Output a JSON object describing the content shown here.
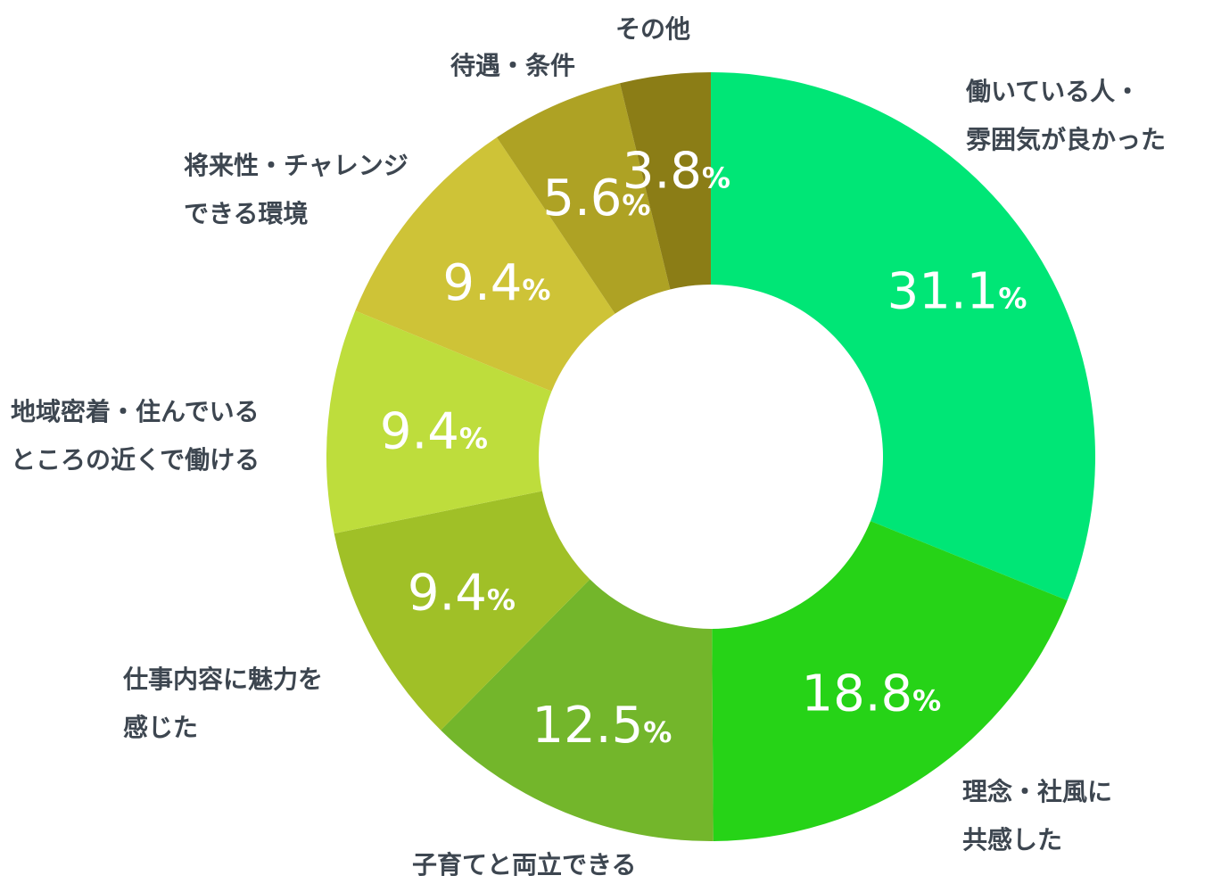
{
  "chart_data": {
    "type": "pie",
    "donut": true,
    "unit": "%",
    "slices": [
      {
        "label_lines": [
          "働いている人・",
          "雰囲気が良かった"
        ],
        "value": 31.1,
        "display": "31.1",
        "color": "#00e676"
      },
      {
        "label_lines": [
          "理念・社風に",
          "共感した"
        ],
        "value": 18.8,
        "display": "18.8",
        "color": "#26d317"
      },
      {
        "label_lines": [
          "子育てと両立できる"
        ],
        "value": 12.5,
        "display": "12.5",
        "color": "#73b62b"
      },
      {
        "label_lines": [
          "仕事内容に魅力を",
          "感じた"
        ],
        "value": 9.4,
        "display": "9.4",
        "color": "#a0c027"
      },
      {
        "label_lines": [
          "地域密着・住んでいる",
          "ところの近くで働ける"
        ],
        "value": 9.4,
        "display": "9.4",
        "color": "#bedd3c"
      },
      {
        "label_lines": [
          "将来性・チャレンジ",
          "できる環境"
        ],
        "value": 9.4,
        "display": "9.4",
        "color": "#cec337"
      },
      {
        "label_lines": [
          "待遇・条件"
        ],
        "value": 5.6,
        "display": "5.6",
        "color": "#aea224"
      },
      {
        "label_lines": [
          "その他"
        ],
        "value": 3.8,
        "display": "3.8",
        "color": "#8b7d16"
      }
    ]
  }
}
